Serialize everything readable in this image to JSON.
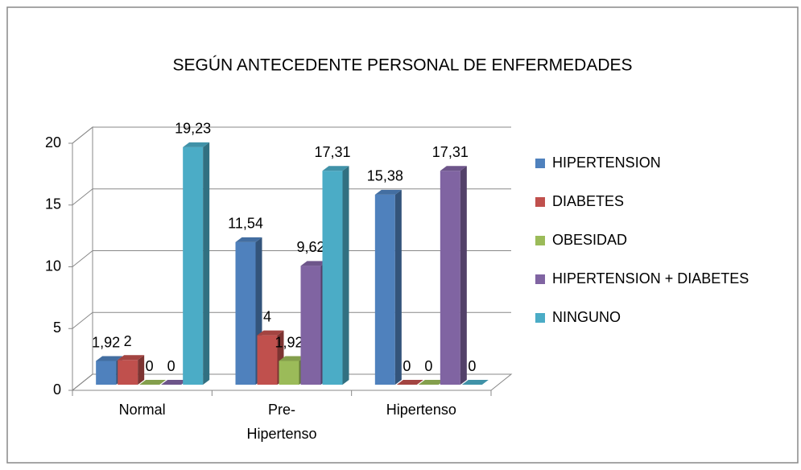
{
  "chart_data": {
    "type": "bar3d",
    "title": "SEGÚN ANTECEDENTE  PERSONAL DE ENFERMEDADES",
    "categories": [
      "Normal",
      "Pre-Hipertenso",
      "Hipertenso"
    ],
    "series": [
      {
        "name": "HIPERTENSION",
        "color": "#4f81bd",
        "values": [
          1.92,
          11.54,
          15.38
        ],
        "value_labels": [
          "1,92",
          "11,54",
          "15,38"
        ]
      },
      {
        "name": "DIABETES",
        "color": "#c0504d",
        "values": [
          2,
          4,
          0
        ],
        "value_labels": [
          "2",
          "4",
          "0"
        ]
      },
      {
        "name": "OBESIDAD",
        "color": "#9bbb59",
        "values": [
          0,
          1.92,
          0
        ],
        "value_labels": [
          "0",
          "1,92",
          "0"
        ]
      },
      {
        "name": "HIPERTENSION + DIABETES",
        "color": "#8064a2",
        "values": [
          0,
          9.62,
          17.31
        ],
        "value_labels": [
          "0",
          "9,62",
          "17,31"
        ]
      },
      {
        "name": "NINGUNO",
        "color": "#4bacc6",
        "values": [
          19.23,
          17.31,
          0
        ],
        "value_labels": [
          "19,23",
          "17,31",
          "0"
        ]
      }
    ],
    "ylim": [
      0,
      20
    ],
    "yticks": [
      0,
      5,
      10,
      15,
      20
    ],
    "grid": true,
    "legend": "right"
  }
}
